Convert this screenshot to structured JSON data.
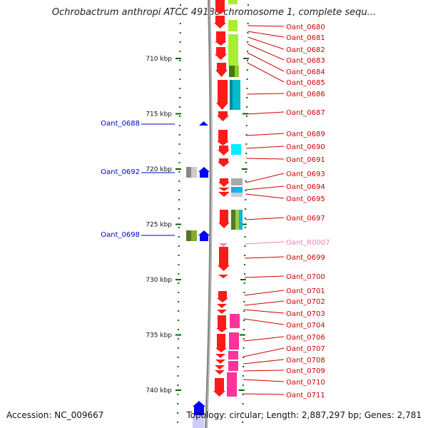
{
  "title": "Ochrobactrum anthropi ATCC 49188 chromosome 1, complete sequ...",
  "footer": {
    "accession": "Accession: NC_009667",
    "summary": "Topology: circular; Length: 2,887,297 bp; Genes: 2,781"
  },
  "colors": {
    "forward_arrow": "#ff0000",
    "reverse_arrow": "#0000ff",
    "right_label": "#cc0000",
    "left_label": "#0000cc",
    "rna_label": "#f080b0",
    "tick": "#006600"
  },
  "scale": {
    "unit": "kbp",
    "ticks": [
      {
        "kbp": 710,
        "label": "710 kbp"
      },
      {
        "kbp": 715,
        "label": "715 kbp"
      },
      {
        "kbp": 720,
        "label": "720 kbp"
      },
      {
        "kbp": 725,
        "label": "725 kbp"
      },
      {
        "kbp": 730,
        "label": "730 kbp"
      },
      {
        "kbp": 735,
        "label": "735 kbp"
      },
      {
        "kbp": 740,
        "label": "740 kbp"
      }
    ]
  },
  "right_genes": [
    {
      "label": "Oant_0680",
      "type": "gene"
    },
    {
      "label": "Oant_0681",
      "type": "gene"
    },
    {
      "label": "Oant_0682",
      "type": "gene"
    },
    {
      "label": "Oant_0683",
      "type": "gene"
    },
    {
      "label": "Oant_0684",
      "type": "gene"
    },
    {
      "label": "Oant_0685",
      "type": "gene"
    },
    {
      "label": "Oant_0686",
      "type": "gene"
    },
    {
      "label": "Oant_0687",
      "type": "gene"
    },
    {
      "label": "Oant_0689",
      "type": "gene"
    },
    {
      "label": "Oant_0690",
      "type": "gene"
    },
    {
      "label": "Oant_0691",
      "type": "gene"
    },
    {
      "label": "Oant_0693",
      "type": "gene"
    },
    {
      "label": "Oant_0694",
      "type": "gene"
    },
    {
      "label": "Oant_0695",
      "type": "gene"
    },
    {
      "label": "Oant_0697",
      "type": "gene"
    },
    {
      "label": "Oant_R0007",
      "type": "rna"
    },
    {
      "label": "Oant_0699",
      "type": "gene"
    },
    {
      "label": "Oant_0700",
      "type": "gene"
    },
    {
      "label": "Oant_0701",
      "type": "gene"
    },
    {
      "label": "Oant_0702",
      "type": "gene"
    },
    {
      "label": "Oant_0703",
      "type": "gene"
    },
    {
      "label": "Oant_0704",
      "type": "gene"
    },
    {
      "label": "Oant_0706",
      "type": "gene"
    },
    {
      "label": "Oant_0707",
      "type": "gene"
    },
    {
      "label": "Oant_0708",
      "type": "gene"
    },
    {
      "label": "Oant_0709",
      "type": "gene"
    },
    {
      "label": "Oant_0710",
      "type": "gene"
    },
    {
      "label": "Oant_0711",
      "type": "gene"
    }
  ],
  "left_genes": [
    {
      "label": "Oant_0688"
    },
    {
      "label": "Oant_0692"
    },
    {
      "label": "Oant_0698"
    }
  ]
}
